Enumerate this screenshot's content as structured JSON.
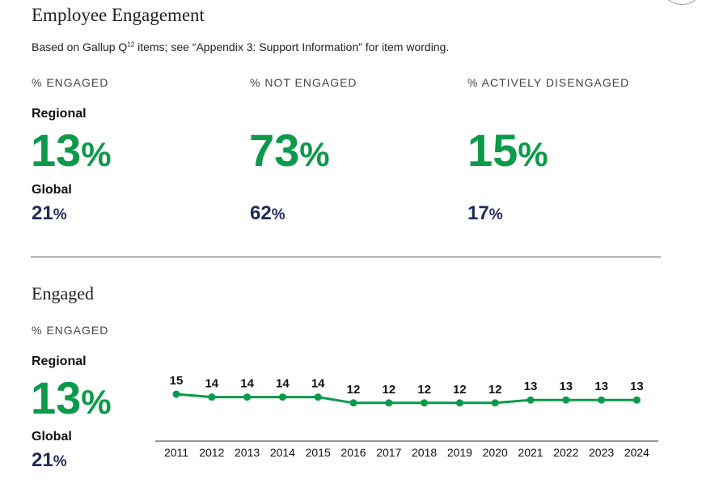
{
  "header": {
    "title": "Employee Engagement",
    "subtitle_prefix": "Based on Gallup Q",
    "subtitle_sup": "12",
    "subtitle_suffix": " items; see “Appendix 3: Support Information” for item wording."
  },
  "metrics": [
    {
      "heading": "% ENGAGED",
      "regional_label": "Regional",
      "regional_value": "13",
      "global_label": "Global",
      "global_value": "21",
      "unit": "%"
    },
    {
      "heading": "% NOT ENGAGED",
      "regional_value": "73",
      "global_value": "62",
      "unit": "%"
    },
    {
      "heading": "% ACTIVELY DISENGAGED",
      "regional_value": "15",
      "global_value": "17",
      "unit": "%"
    }
  ],
  "engaged_section": {
    "title": "Engaged",
    "heading": "% ENGAGED",
    "regional_label": "Regional",
    "regional_value": "13",
    "global_label": "Global",
    "global_value": "21",
    "unit": "%"
  },
  "colors": {
    "regional_green": "#0a9a4a",
    "global_navy": "#1f2a5c",
    "line_green": "#0a9a4a"
  },
  "chart_data": {
    "type": "line",
    "x": [
      "2011",
      "2012",
      "2013",
      "2014",
      "2015",
      "2016",
      "2017",
      "2018",
      "2019",
      "2020",
      "2021",
      "2022",
      "2023",
      "2024"
    ],
    "series": [
      {
        "values": [
          15,
          14,
          14,
          14,
          14,
          12,
          12,
          12,
          12,
          12,
          13,
          13,
          13,
          13
        ]
      }
    ],
    "title": "",
    "xlabel": "",
    "ylabel": "",
    "grid": false,
    "data_labels": true
  }
}
